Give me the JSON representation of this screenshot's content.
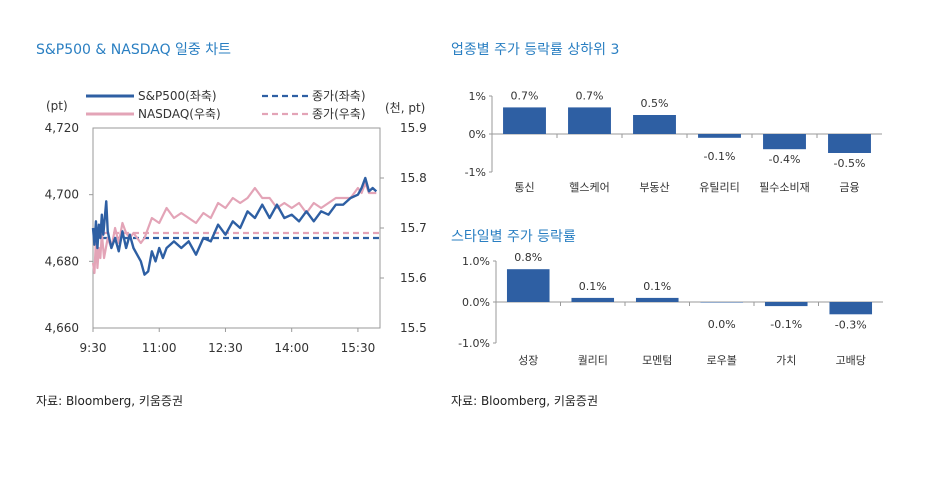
{
  "left_chart": {
    "title": "S&P500 & NASDAQ 일중 차트",
    "source": "자료: Bloomberg, 키움증권"
  },
  "bar_chart_1": {
    "title": "업종별 주가 등락률 상하위 3"
  },
  "bar_chart_2": {
    "title": "스타일별 주가 등락률",
    "source": "자료: Bloomberg, 키움증권"
  },
  "colors": {
    "spx": "#2e5fa3",
    "ndx": "#e3a4b7",
    "bar": "#2e5fa3",
    "title": "#2a7fc2"
  },
  "chart_data": [
    {
      "type": "line",
      "title": "S&P500 & NASDAQ 일중 차트",
      "ylabel_left": "(pt)",
      "ylabel_right": "(천, pt)",
      "x_ticks": [
        "9:30",
        "11:00",
        "12:30",
        "14:00",
        "15:30"
      ],
      "x_range": [
        0,
        390
      ],
      "y_left_ticks": [
        "4,720",
        "4,700",
        "4,680",
        "4,660"
      ],
      "y_left_range": [
        4660,
        4720
      ],
      "y_right_ticks": [
        "15.9",
        "15.8",
        "15.7",
        "15.6",
        "15.5"
      ],
      "y_right_range": [
        15.5,
        15.9
      ],
      "legend": [
        "S&P500(좌축)",
        "NASDAQ(우축)",
        "종가(좌축)",
        "종가(우축)"
      ],
      "series": [
        {
          "name": "S&P500(좌축)",
          "axis": "left",
          "x": [
            0,
            2,
            4,
            6,
            8,
            10,
            12,
            14,
            16,
            18,
            20,
            25,
            30,
            35,
            40,
            45,
            50,
            55,
            60,
            65,
            70,
            75,
            80,
            85,
            90,
            95,
            100,
            110,
            120,
            130,
            140,
            150,
            160,
            170,
            180,
            190,
            200,
            210,
            220,
            230,
            240,
            250,
            260,
            270,
            280,
            290,
            300,
            310,
            320,
            330,
            340,
            350,
            360,
            365,
            370,
            375,
            380,
            385
          ],
          "values": [
            4690,
            4685,
            4692,
            4684,
            4691,
            4687,
            4694,
            4688,
            4693,
            4698,
            4689,
            4684,
            4687,
            4683,
            4689,
            4684,
            4688,
            4684,
            4682,
            4680,
            4676,
            4677,
            4683,
            4680,
            4684,
            4681,
            4684,
            4686,
            4684,
            4686,
            4682,
            4687,
            4686,
            4691,
            4688,
            4692,
            4690,
            4695,
            4693,
            4697,
            4693,
            4697,
            4693,
            4694,
            4692,
            4695,
            4692,
            4695,
            4694,
            4697,
            4697,
            4699,
            4700,
            4702,
            4705,
            4701,
            4702,
            4701
          ]
        },
        {
          "name": "NASDAQ(우축)",
          "axis": "right",
          "x": [
            0,
            2,
            4,
            6,
            8,
            10,
            12,
            15,
            20,
            25,
            30,
            35,
            40,
            45,
            50,
            55,
            60,
            65,
            70,
            75,
            80,
            90,
            100,
            110,
            120,
            130,
            140,
            150,
            160,
            170,
            180,
            190,
            200,
            210,
            220,
            230,
            240,
            250,
            260,
            270,
            280,
            290,
            300,
            310,
            320,
            330,
            340,
            350,
            360,
            365,
            370,
            375,
            380,
            385
          ],
          "values": [
            15.63,
            15.61,
            15.68,
            15.62,
            15.66,
            15.64,
            15.69,
            15.64,
            15.68,
            15.66,
            15.7,
            15.67,
            15.71,
            15.69,
            15.68,
            15.69,
            15.68,
            15.67,
            15.68,
            15.7,
            15.72,
            15.71,
            15.74,
            15.72,
            15.73,
            15.72,
            15.71,
            15.73,
            15.72,
            15.75,
            15.74,
            15.76,
            15.75,
            15.76,
            15.78,
            15.76,
            15.76,
            15.74,
            15.75,
            15.74,
            15.75,
            15.73,
            15.75,
            15.74,
            15.75,
            15.76,
            15.76,
            15.76,
            15.78,
            15.77,
            15.79,
            15.77,
            15.77,
            15.77
          ]
        }
      ],
      "closing_lines": [
        {
          "name": "종가(좌축)",
          "axis": "left",
          "value": 4687
        },
        {
          "name": "종가(우축)",
          "axis": "right",
          "value": 15.69
        }
      ]
    },
    {
      "type": "bar",
      "title": "업종별 주가 등락률 상하위 3",
      "categories": [
        "통신",
        "헬스케어",
        "부동산",
        "유틸리티",
        "필수소비재",
        "금융"
      ],
      "values": [
        0.7,
        0.7,
        0.5,
        -0.1,
        -0.4,
        -0.5
      ],
      "value_labels": [
        "0.7%",
        "0.7%",
        "0.5%",
        "-0.1%",
        "-0.4%",
        "-0.5%"
      ],
      "y_ticks": [
        "1%",
        "0%",
        "-1%"
      ],
      "ylim": [
        -1,
        1
      ]
    },
    {
      "type": "bar",
      "title": "스타일별 주가 등락률",
      "categories": [
        "성장",
        "퀄리티",
        "모멘텀",
        "로우볼",
        "가치",
        "고배당"
      ],
      "values": [
        0.8,
        0.1,
        0.1,
        0.0,
        -0.1,
        -0.3
      ],
      "value_labels": [
        "0.8%",
        "0.1%",
        "0.1%",
        "0.0%",
        "-0.1%",
        "-0.3%"
      ],
      "y_ticks": [
        "1.0%",
        "0.0%",
        "-1.0%"
      ],
      "ylim": [
        -1,
        1
      ]
    }
  ]
}
